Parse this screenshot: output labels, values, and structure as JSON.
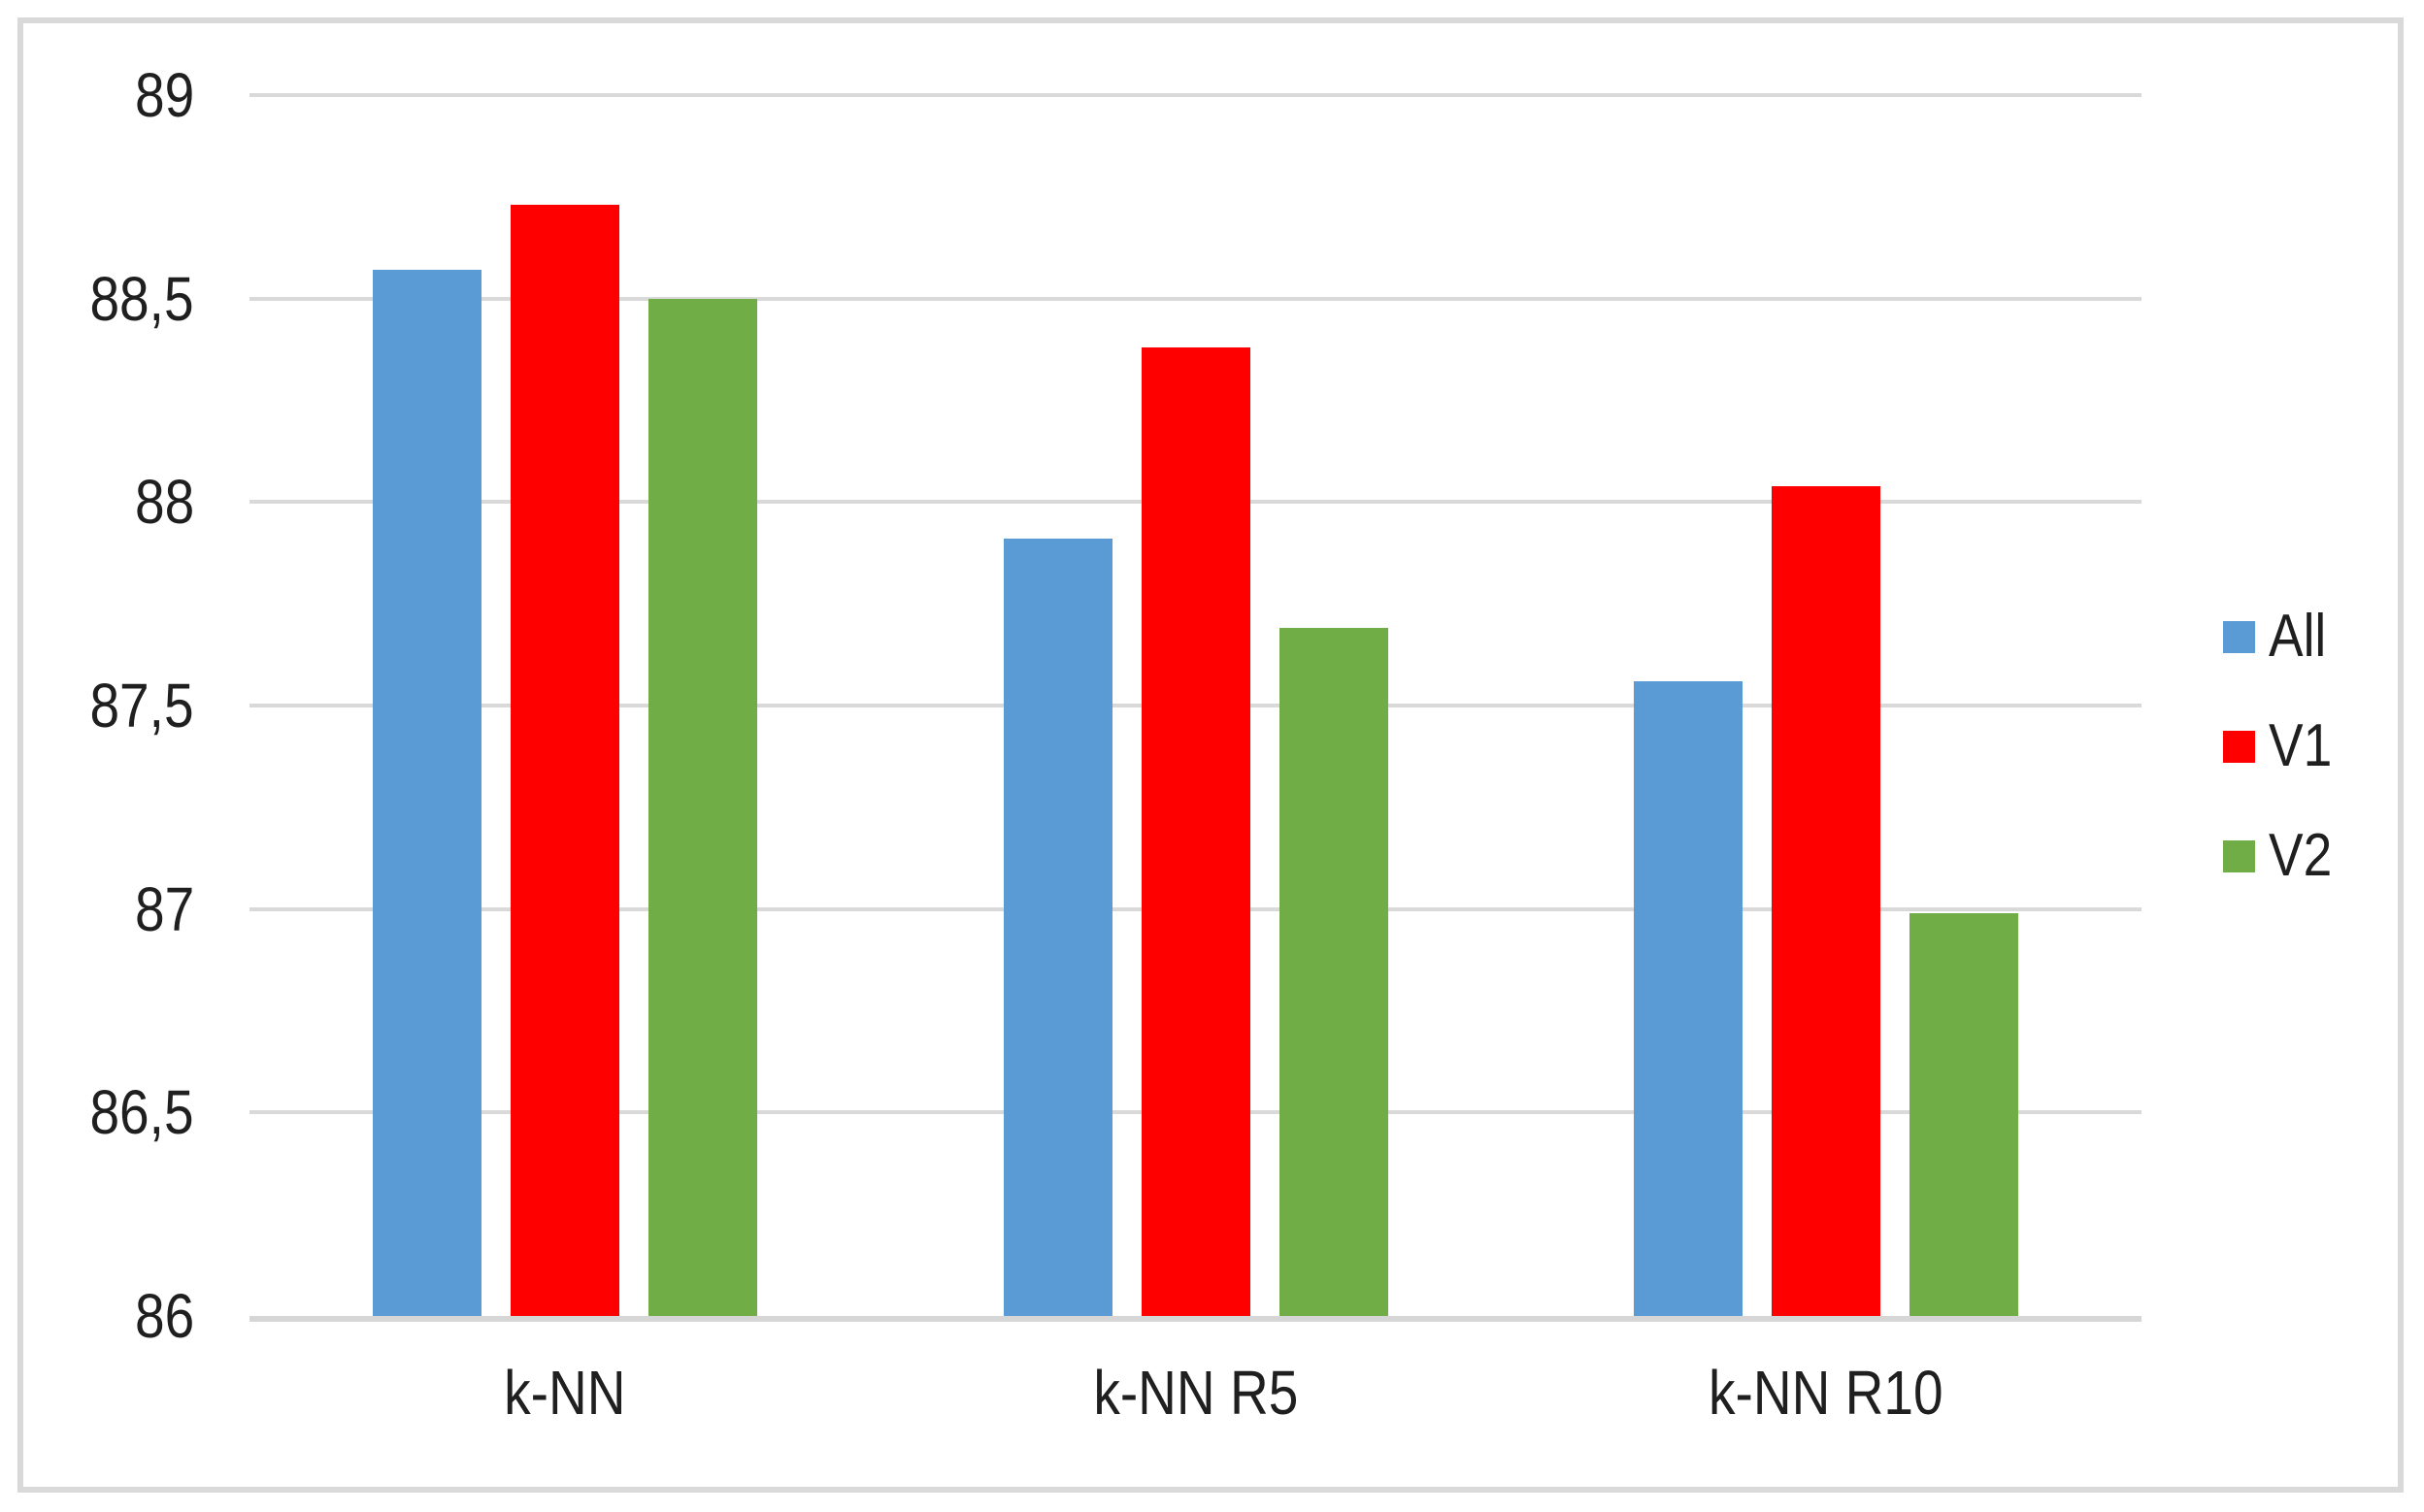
{
  "chart_data": {
    "type": "bar",
    "title": "",
    "xlabel": "",
    "ylabel": "",
    "categories": [
      "k-NN",
      "k-NN R5",
      "k-NN R10"
    ],
    "series": [
      {
        "name": "All",
        "color": "#5B9BD5",
        "values": [
          88.57,
          87.91,
          87.56
        ]
      },
      {
        "name": "V1",
        "color": "#FF0000",
        "values": [
          88.73,
          88.38,
          88.04
        ]
      },
      {
        "name": "V2",
        "color": "#70AD47",
        "values": [
          88.5,
          87.69,
          86.99
        ]
      }
    ],
    "ylim": [
      86,
      89
    ],
    "ytick_step": 0.5,
    "ytick_labels": [
      "86",
      "86,5",
      "87",
      "87,5",
      "88",
      "88,5",
      "89"
    ],
    "decimal_separator": ",",
    "grid": true,
    "legend_position": "right"
  },
  "colors": {
    "bar_blue": "#5B9BD5",
    "bar_red": "#FF0000",
    "bar_green": "#70AD47",
    "gridline": "#D9D9D9",
    "axis_line": "#D6D6D6",
    "frame_border": "#D9D9D9",
    "text": "#1F1F1F",
    "background": "#FFFFFF"
  }
}
